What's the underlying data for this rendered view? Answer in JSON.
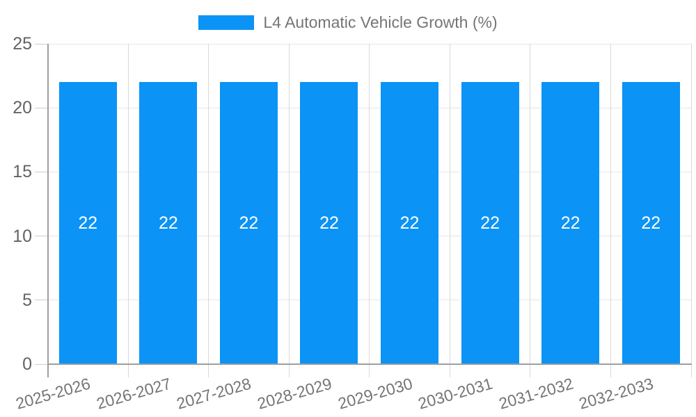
{
  "legend": {
    "label": "L4 Automatic Vehicle Growth (%)"
  },
  "colors": {
    "bar": "#0b93f6",
    "bar_label": "#ffffff",
    "legend_text": "#757575",
    "y_axis_text": "#636363",
    "x_axis_text": "#757575",
    "axis_line": "#9e9e9e",
    "grid_horizontal": "#e6e6e6",
    "grid_vertical": "#d9d9d9",
    "tick": "#cccccc",
    "background": "#ffffff"
  },
  "chart_data": {
    "type": "bar",
    "title": "L4 Automatic Vehicle Growth (%)",
    "categories": [
      "2025-2026",
      "2026-2027",
      "2027-2028",
      "2028-2029",
      "2029-2030",
      "2030-2031",
      "2031-2032",
      "2032-2033"
    ],
    "series": [
      {
        "name": "L4 Automatic Vehicle Growth (%)",
        "values": [
          22,
          22,
          22,
          22,
          22,
          22,
          22,
          22
        ]
      }
    ],
    "bar_value_labels": [
      "22",
      "22",
      "22",
      "22",
      "22",
      "22",
      "22",
      "22"
    ],
    "xlabel": "",
    "ylabel": "",
    "ylim": [
      0,
      25
    ],
    "yticks": [
      0,
      5,
      10,
      15,
      20,
      25
    ],
    "grid": true,
    "legend_position": "top-center",
    "x_tick_rotation_deg": -16
  }
}
